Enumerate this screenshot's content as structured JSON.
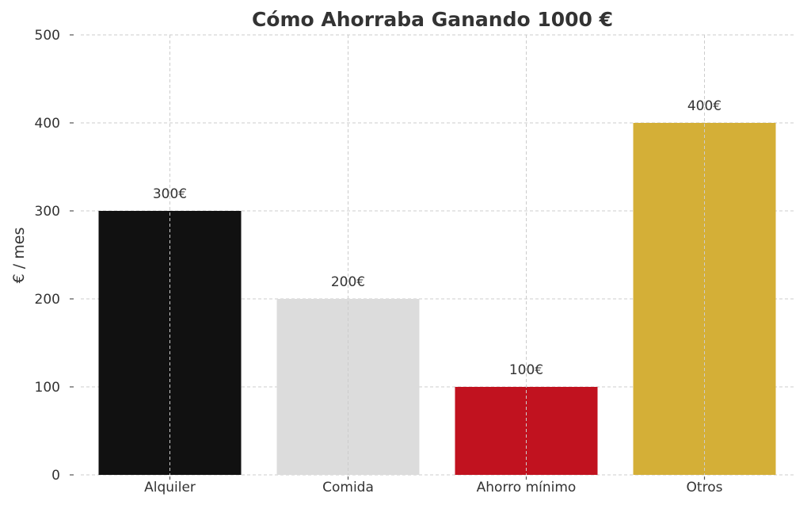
{
  "chart_data": {
    "type": "bar",
    "title": "Cómo Ahorraba Ganando 1000 €",
    "xlabel": "",
    "ylabel": "€ / mes",
    "categories": [
      "Alquiler",
      "Comida",
      "Ahorro mínimo",
      "Otros"
    ],
    "values": [
      300,
      200,
      100,
      400
    ],
    "data_labels": [
      "300€",
      "200€",
      "100€",
      "400€"
    ],
    "colors": [
      "#111111",
      "#dcdcdc",
      "#c1121f",
      "#d4af37"
    ],
    "ylim": [
      0,
      500
    ],
    "yticks": [
      0,
      100,
      200,
      300,
      400,
      500
    ],
    "grid": true
  }
}
